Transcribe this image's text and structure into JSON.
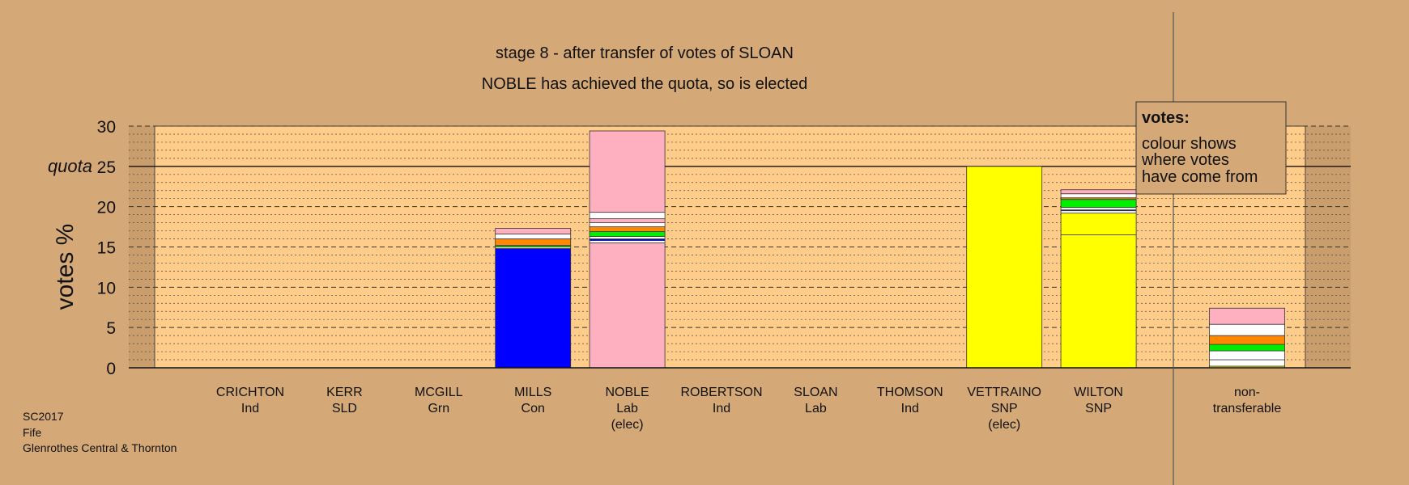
{
  "meta": {
    "election": "SC2017",
    "council": "Fife",
    "ward": "Glenrothes Central & Thornton"
  },
  "legend": {
    "heading": "votes:",
    "lines": [
      "colour shows",
      "where votes",
      "have come from"
    ]
  },
  "chart_data": {
    "type": "bar",
    "stacked": true,
    "title": "stage 8 - after transfer of votes of SLOAN",
    "subtitle": "NOBLE has achieved the quota, so is elected",
    "ylabel": "votes %",
    "ylim": [
      0,
      30
    ],
    "yticks": [
      0,
      5,
      10,
      15,
      20,
      25,
      30
    ],
    "quota": 25,
    "quota_label": "quota",
    "grid": true,
    "categories": [
      {
        "name": "CRICHTON",
        "party": "Ind",
        "status": ""
      },
      {
        "name": "KERR",
        "party": "SLD",
        "status": ""
      },
      {
        "name": "MCGILL",
        "party": "Grn",
        "status": ""
      },
      {
        "name": "MILLS",
        "party": "Con",
        "status": ""
      },
      {
        "name": "NOBLE",
        "party": "Lab",
        "status": "(elec)"
      },
      {
        "name": "ROBERTSON",
        "party": "Ind",
        "status": ""
      },
      {
        "name": "SLOAN",
        "party": "Lab",
        "status": ""
      },
      {
        "name": "THOMSON",
        "party": "Ind",
        "status": ""
      },
      {
        "name": "VETTRAINO",
        "party": "SNP",
        "status": "(elec)"
      },
      {
        "name": "WILTON",
        "party": "SNP",
        "status": ""
      }
    ],
    "nontransferable_label": [
      "non-",
      "transferable"
    ],
    "bars": {
      "MILLS": [
        {
          "color": "#0000ff",
          "value": 14.8
        },
        {
          "color": "#ffffff",
          "value": 0.2
        },
        {
          "color": "#00ee00",
          "value": 0.2
        },
        {
          "color": "#ff8800",
          "value": 0.8
        },
        {
          "color": "#ffffff",
          "value": 0.6
        },
        {
          "color": "#ffb0c0",
          "value": 0.7
        }
      ],
      "NOBLE": [
        {
          "color": "#ffb0c0",
          "value": 15.5
        },
        {
          "color": "#ffffff",
          "value": 0.3
        },
        {
          "color": "#0000ff",
          "value": 0.2
        },
        {
          "color": "#ffffff",
          "value": 0.3
        },
        {
          "color": "#00ee00",
          "value": 0.6
        },
        {
          "color": "#ff8800",
          "value": 0.6
        },
        {
          "color": "#ffffff",
          "value": 0.5
        },
        {
          "color": "#ffb0c0",
          "value": 0.5
        },
        {
          "color": "#ffffff",
          "value": 0.8
        },
        {
          "color": "#ffb0c0",
          "value": 10.1
        }
      ],
      "VETTRAINO": [
        {
          "color": "#ffff00",
          "value": 25.0
        }
      ],
      "WILTON": [
        {
          "color": "#ffff00",
          "value": 16.5
        },
        {
          "color": "#ffff00",
          "value": 2.7
        },
        {
          "color": "#ffffff",
          "value": 0.3
        },
        {
          "color": "#0000ff",
          "value": 0.1
        },
        {
          "color": "#ffffff",
          "value": 0.3
        },
        {
          "color": "#00ee00",
          "value": 1.0
        },
        {
          "color": "#ff8800",
          "value": 0.2
        },
        {
          "color": "#ffffff",
          "value": 0.5
        },
        {
          "color": "#ffb0c0",
          "value": 0.5
        }
      ],
      "NONTRANSFERABLE": [
        {
          "color": "#ffff00",
          "value": 0.2
        },
        {
          "color": "#ffffff",
          "value": 0.8
        },
        {
          "color": "#ffffff",
          "value": 1.1
        },
        {
          "color": "#00ee00",
          "value": 0.8
        },
        {
          "color": "#ff8800",
          "value": 1.1
        },
        {
          "color": "#ffffff",
          "value": 1.4
        },
        {
          "color": "#ffb0c0",
          "value": 2.0
        }
      ]
    }
  }
}
